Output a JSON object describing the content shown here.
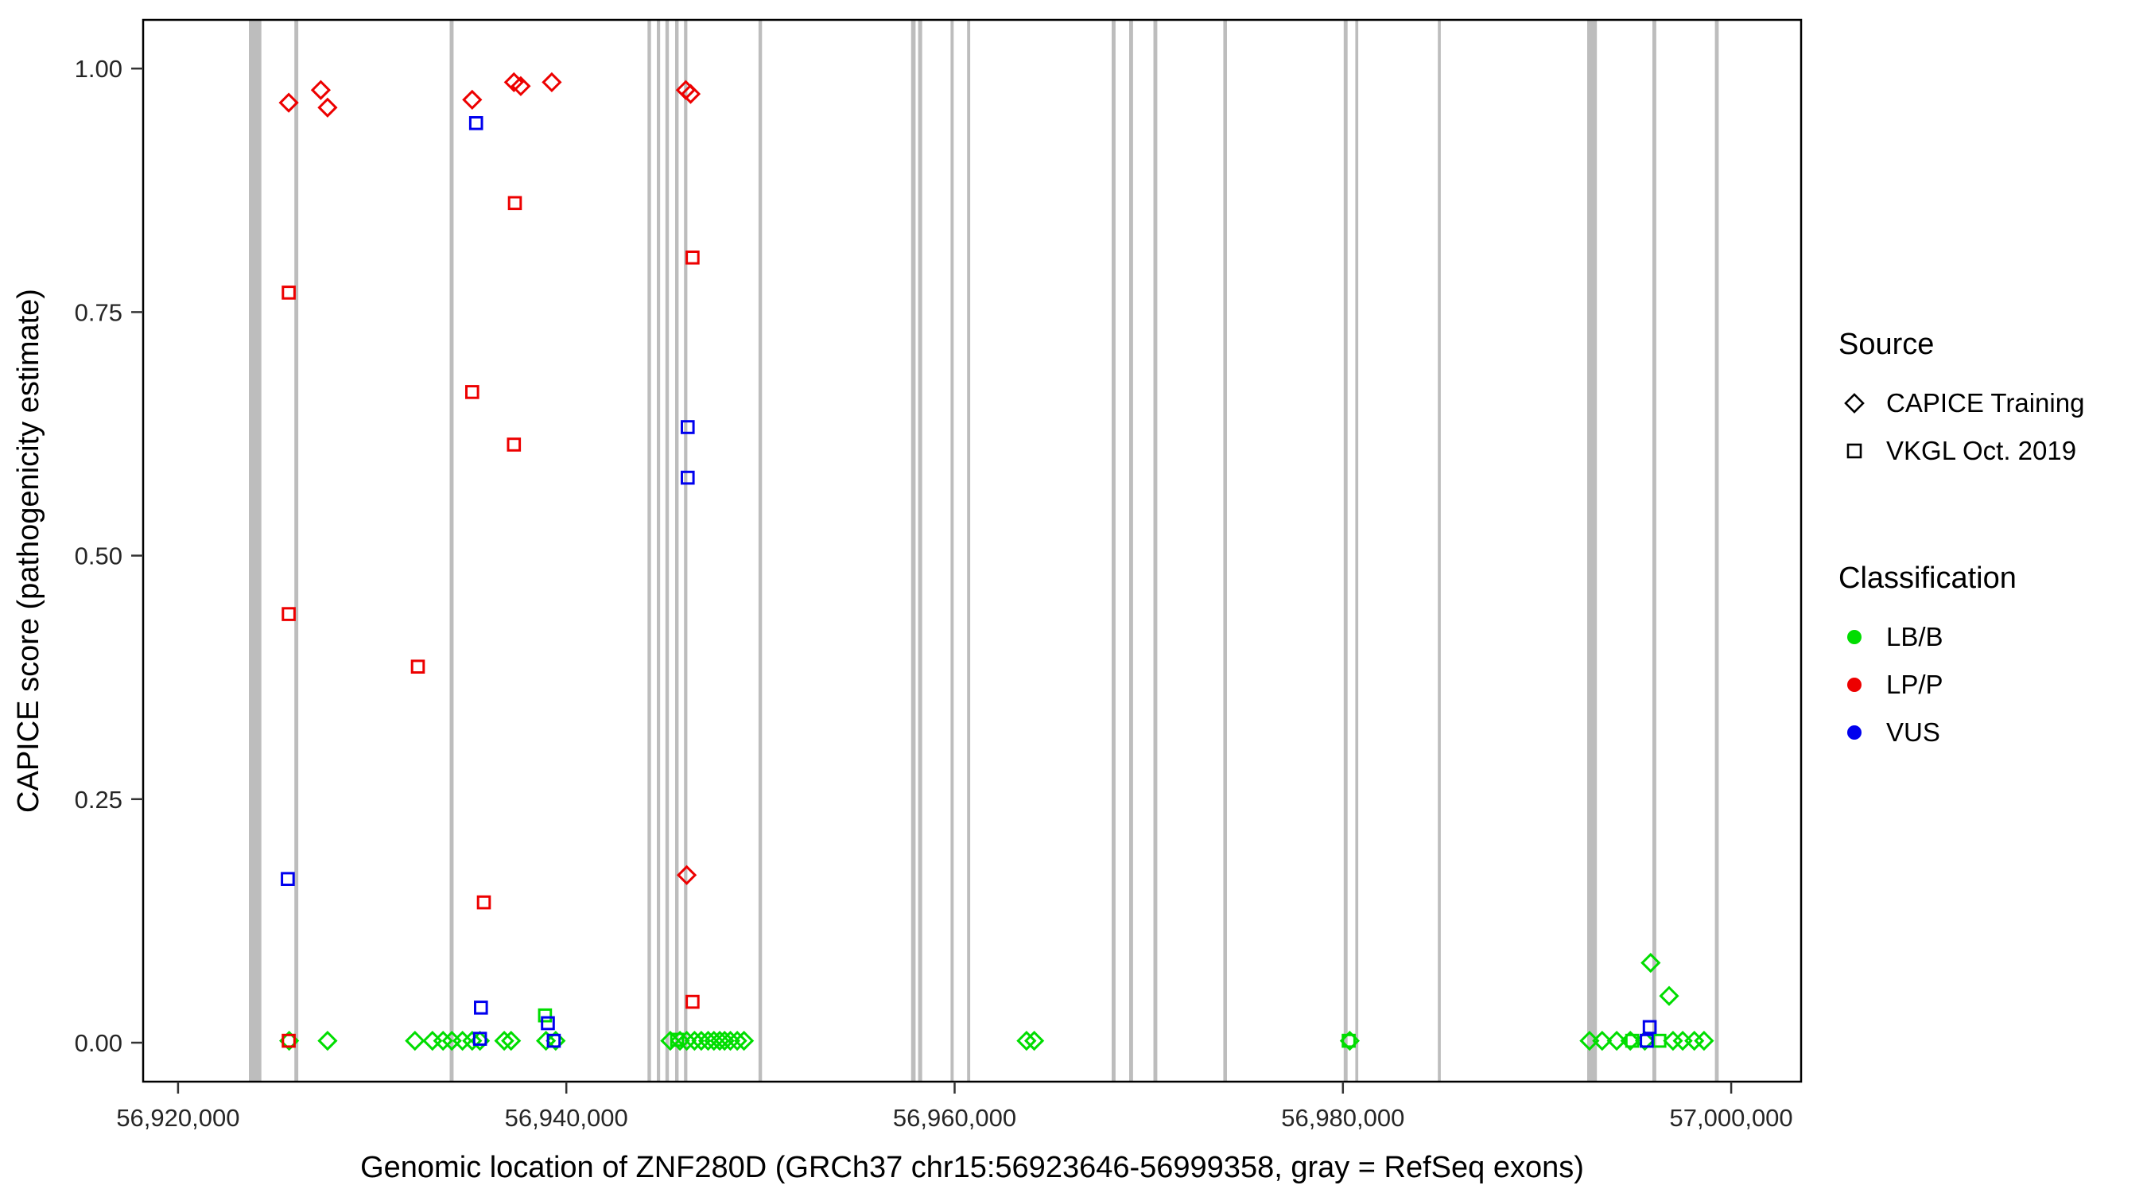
{
  "chart_data": {
    "type": "scatter",
    "title": "",
    "xlabel": "Genomic location of ZNF280D (GRCh37 chr15:56923646-56999358, gray = RefSeq exons)",
    "ylabel": "CAPICE score (pathogenicity estimate)",
    "xlim": [
      56918200,
      57003600
    ],
    "ylim": [
      -0.04,
      1.05
    ],
    "grid": false,
    "legend_position": "right",
    "x_ticks": [
      {
        "value": 56920000,
        "label": "56,920,000"
      },
      {
        "value": 56940000,
        "label": "56,940,000"
      },
      {
        "value": 56960000,
        "label": "56,960,000"
      },
      {
        "value": 56980000,
        "label": "56,980,000"
      },
      {
        "value": 57000000,
        "label": "57,000,000"
      }
    ],
    "y_ticks": [
      {
        "value": 0.0,
        "label": "0.00"
      },
      {
        "value": 0.25,
        "label": "0.25"
      },
      {
        "value": 0.5,
        "label": "0.50"
      },
      {
        "value": 0.75,
        "label": "0.75"
      },
      {
        "value": 1.0,
        "label": "1.00"
      }
    ],
    "exon_color": "#BDBDBD",
    "exons": [
      [
        56923646,
        56924290
      ],
      [
        56925990,
        56926190
      ],
      [
        56933990,
        56934190
      ],
      [
        56944180,
        56944360
      ],
      [
        56944660,
        56944830
      ],
      [
        56945100,
        56945280
      ],
      [
        56945600,
        56945780
      ],
      [
        56946060,
        56946230
      ],
      [
        56949900,
        56950080
      ],
      [
        56957760,
        56957990
      ],
      [
        56958120,
        56958330
      ],
      [
        56959790,
        56959950
      ],
      [
        56960640,
        56960800
      ],
      [
        56968090,
        56968290
      ],
      [
        56968990,
        56969190
      ],
      [
        56970240,
        56970440
      ],
      [
        56973840,
        56974030
      ],
      [
        56980040,
        56980240
      ],
      [
        56980640,
        56980790
      ],
      [
        56984890,
        56985040
      ],
      [
        56992580,
        56993080
      ],
      [
        56995940,
        56996140
      ],
      [
        56999160,
        56999358
      ]
    ],
    "series": [
      {
        "name": "CAPICE Training / LB/B",
        "source": "CAPICE Training",
        "classification": "LB/B",
        "shape": "diamond",
        "color": "#00DD00",
        "points": [
          [
            56925720,
            0.002
          ],
          [
            56927700,
            0.002
          ],
          [
            56932200,
            0.002
          ],
          [
            56933100,
            0.002
          ],
          [
            56933650,
            0.002
          ],
          [
            56934100,
            0.002
          ],
          [
            56934650,
            0.002
          ],
          [
            56935150,
            0.002
          ],
          [
            56935550,
            0.002
          ],
          [
            56936800,
            0.002
          ],
          [
            56937150,
            0.002
          ],
          [
            56938950,
            0.002
          ],
          [
            56939450,
            0.002
          ],
          [
            56945350,
            0.002
          ],
          [
            56945850,
            0.002
          ],
          [
            56946200,
            0.002
          ],
          [
            56946600,
            0.002
          ],
          [
            56946950,
            0.002
          ],
          [
            56947300,
            0.002
          ],
          [
            56947600,
            0.002
          ],
          [
            56947900,
            0.002
          ],
          [
            56948150,
            0.002
          ],
          [
            56948450,
            0.002
          ],
          [
            56948800,
            0.002
          ],
          [
            56949150,
            0.002
          ],
          [
            56963700,
            0.002
          ],
          [
            56964100,
            0.002
          ],
          [
            56980350,
            0.002
          ],
          [
            56992700,
            0.002
          ],
          [
            56993350,
            0.002
          ],
          [
            56994100,
            0.002
          ],
          [
            56994800,
            0.002
          ],
          [
            56995550,
            0.002
          ],
          [
            56995850,
            0.082
          ],
          [
            56996800,
            0.048
          ],
          [
            56997000,
            0.002
          ],
          [
            56997500,
            0.002
          ],
          [
            56998100,
            0.002
          ],
          [
            56998600,
            0.002
          ]
        ]
      },
      {
        "name": "VKGL Oct. 2019 / LB/B",
        "source": "VKGL Oct. 2019",
        "classification": "LB/B",
        "shape": "square",
        "color": "#00DD00",
        "points": [
          [
            56938900,
            0.028
          ],
          [
            56945700,
            0.003
          ],
          [
            56980300,
            0.002
          ],
          [
            56994900,
            0.002
          ],
          [
            56996300,
            0.002
          ]
        ]
      },
      {
        "name": "VKGL Oct. 2019 / VUS",
        "source": "VKGL Oct. 2019",
        "classification": "VUS",
        "shape": "square",
        "color": "#0000EE",
        "points": [
          [
            56935350,
            0.944
          ],
          [
            56946250,
            0.632
          ],
          [
            56946250,
            0.58
          ],
          [
            56925650,
            0.168
          ],
          [
            56935600,
            0.036
          ],
          [
            56935550,
            0.004
          ],
          [
            56939050,
            0.02
          ],
          [
            56939350,
            0.002
          ],
          [
            56995800,
            0.016
          ],
          [
            56995650,
            0.002
          ]
        ]
      },
      {
        "name": "VKGL Oct. 2019 / LP/P",
        "source": "VKGL Oct. 2019",
        "classification": "LP/P",
        "shape": "square",
        "color": "#ED0000",
        "points": [
          [
            56925700,
            0.77
          ],
          [
            56925700,
            0.44
          ],
          [
            56932350,
            0.386
          ],
          [
            56935150,
            0.668
          ],
          [
            56937350,
            0.862
          ],
          [
            56937300,
            0.614
          ],
          [
            56935750,
            0.144
          ],
          [
            56946500,
            0.806
          ],
          [
            56946500,
            0.042
          ],
          [
            56925700,
            0.002
          ]
        ]
      },
      {
        "name": "CAPICE Training / LP/P",
        "source": "CAPICE Training",
        "classification": "LP/P",
        "shape": "diamond",
        "color": "#ED0000",
        "points": [
          [
            56925700,
            0.965
          ],
          [
            56927350,
            0.978
          ],
          [
            56927700,
            0.96
          ],
          [
            56935150,
            0.968
          ],
          [
            56937300,
            0.986
          ],
          [
            56937650,
            0.982
          ],
          [
            56939250,
            0.986
          ],
          [
            56946150,
            0.978
          ],
          [
            56946400,
            0.974
          ],
          [
            56946200,
            0.172
          ]
        ]
      }
    ]
  },
  "legend": {
    "source": {
      "title": "Source",
      "items": [
        {
          "label": "CAPICE Training",
          "shape": "diamond"
        },
        {
          "label": "VKGL Oct. 2019",
          "shape": "square"
        }
      ]
    },
    "classification": {
      "title": "Classification",
      "items": [
        {
          "label": "LB/B",
          "color": "#00DD00"
        },
        {
          "label": "LP/P",
          "color": "#ED0000"
        },
        {
          "label": "VUS",
          "color": "#0000EE"
        }
      ]
    }
  }
}
